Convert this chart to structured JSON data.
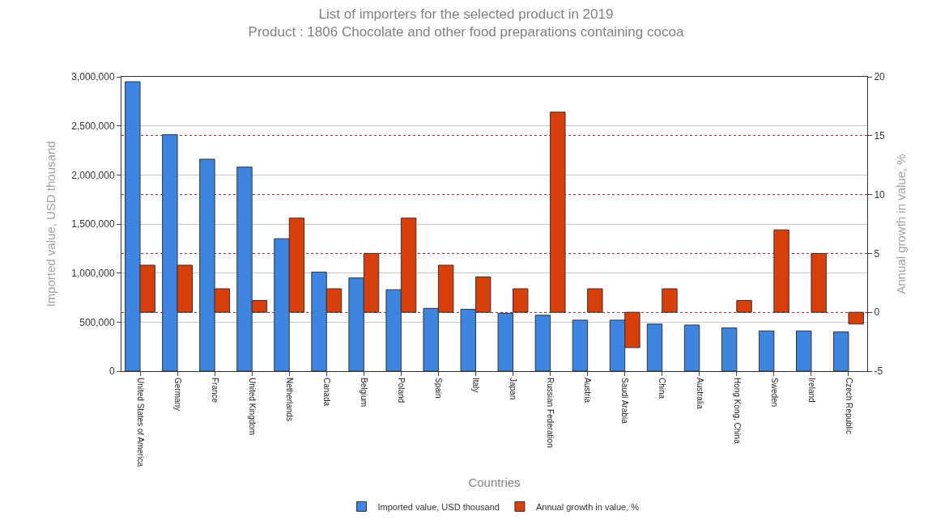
{
  "chart_data": {
    "type": "bar",
    "title": "List of importers for the selected product in 2019",
    "subtitle": "Product : 1806 Chocolate and other food preparations containing cocoa",
    "xlabel": "Countries",
    "ylabel": "Imported value, USD thousand",
    "y2label": "Annual growth in value, %",
    "categories": [
      "United States of America",
      "Germany",
      "France",
      "United Kingdom",
      "Netherlands",
      "Canada",
      "Belgium",
      "Poland",
      "Spain",
      "Italy",
      "Japan",
      "Russian Federation",
      "Austria",
      "Saudi Arabia",
      "China",
      "Australia",
      "Hong Kong, China",
      "Sweden",
      "Ireland",
      "Czech Republic"
    ],
    "series": [
      {
        "name": "Imported value, USD thousand",
        "color": "#3d85e0",
        "values": [
          2950000,
          2410000,
          2160000,
          2080000,
          1350000,
          1010000,
          950000,
          830000,
          640000,
          630000,
          590000,
          570000,
          520000,
          520000,
          480000,
          470000,
          440000,
          410000,
          410000,
          400000
        ]
      },
      {
        "name": "Annual growth in value, %",
        "color": "#d93f0b",
        "axis": "y2",
        "values": [
          4,
          4,
          2,
          1,
          8,
          2,
          5,
          8,
          4,
          3,
          2,
          17,
          2,
          -3,
          2,
          null,
          1,
          7,
          5,
          -1
        ]
      }
    ],
    "ylim": [
      0,
      3000000
    ],
    "yticks": [
      {
        "value": 0,
        "label": "0"
      },
      {
        "value": 500000,
        "label": "500,000"
      },
      {
        "value": 1000000,
        "label": "1,000,000"
      },
      {
        "value": 1500000,
        "label": "1,500,000"
      },
      {
        "value": 2000000,
        "label": "2,000,000"
      },
      {
        "value": 2500000,
        "label": "2,500,000"
      },
      {
        "value": 3000000,
        "label": "3,000,000"
      }
    ],
    "y2lim": [
      -5,
      20
    ],
    "y2ticks": [
      -5,
      0,
      5,
      10,
      15,
      20
    ],
    "grid": true,
    "legend": "bottom"
  }
}
